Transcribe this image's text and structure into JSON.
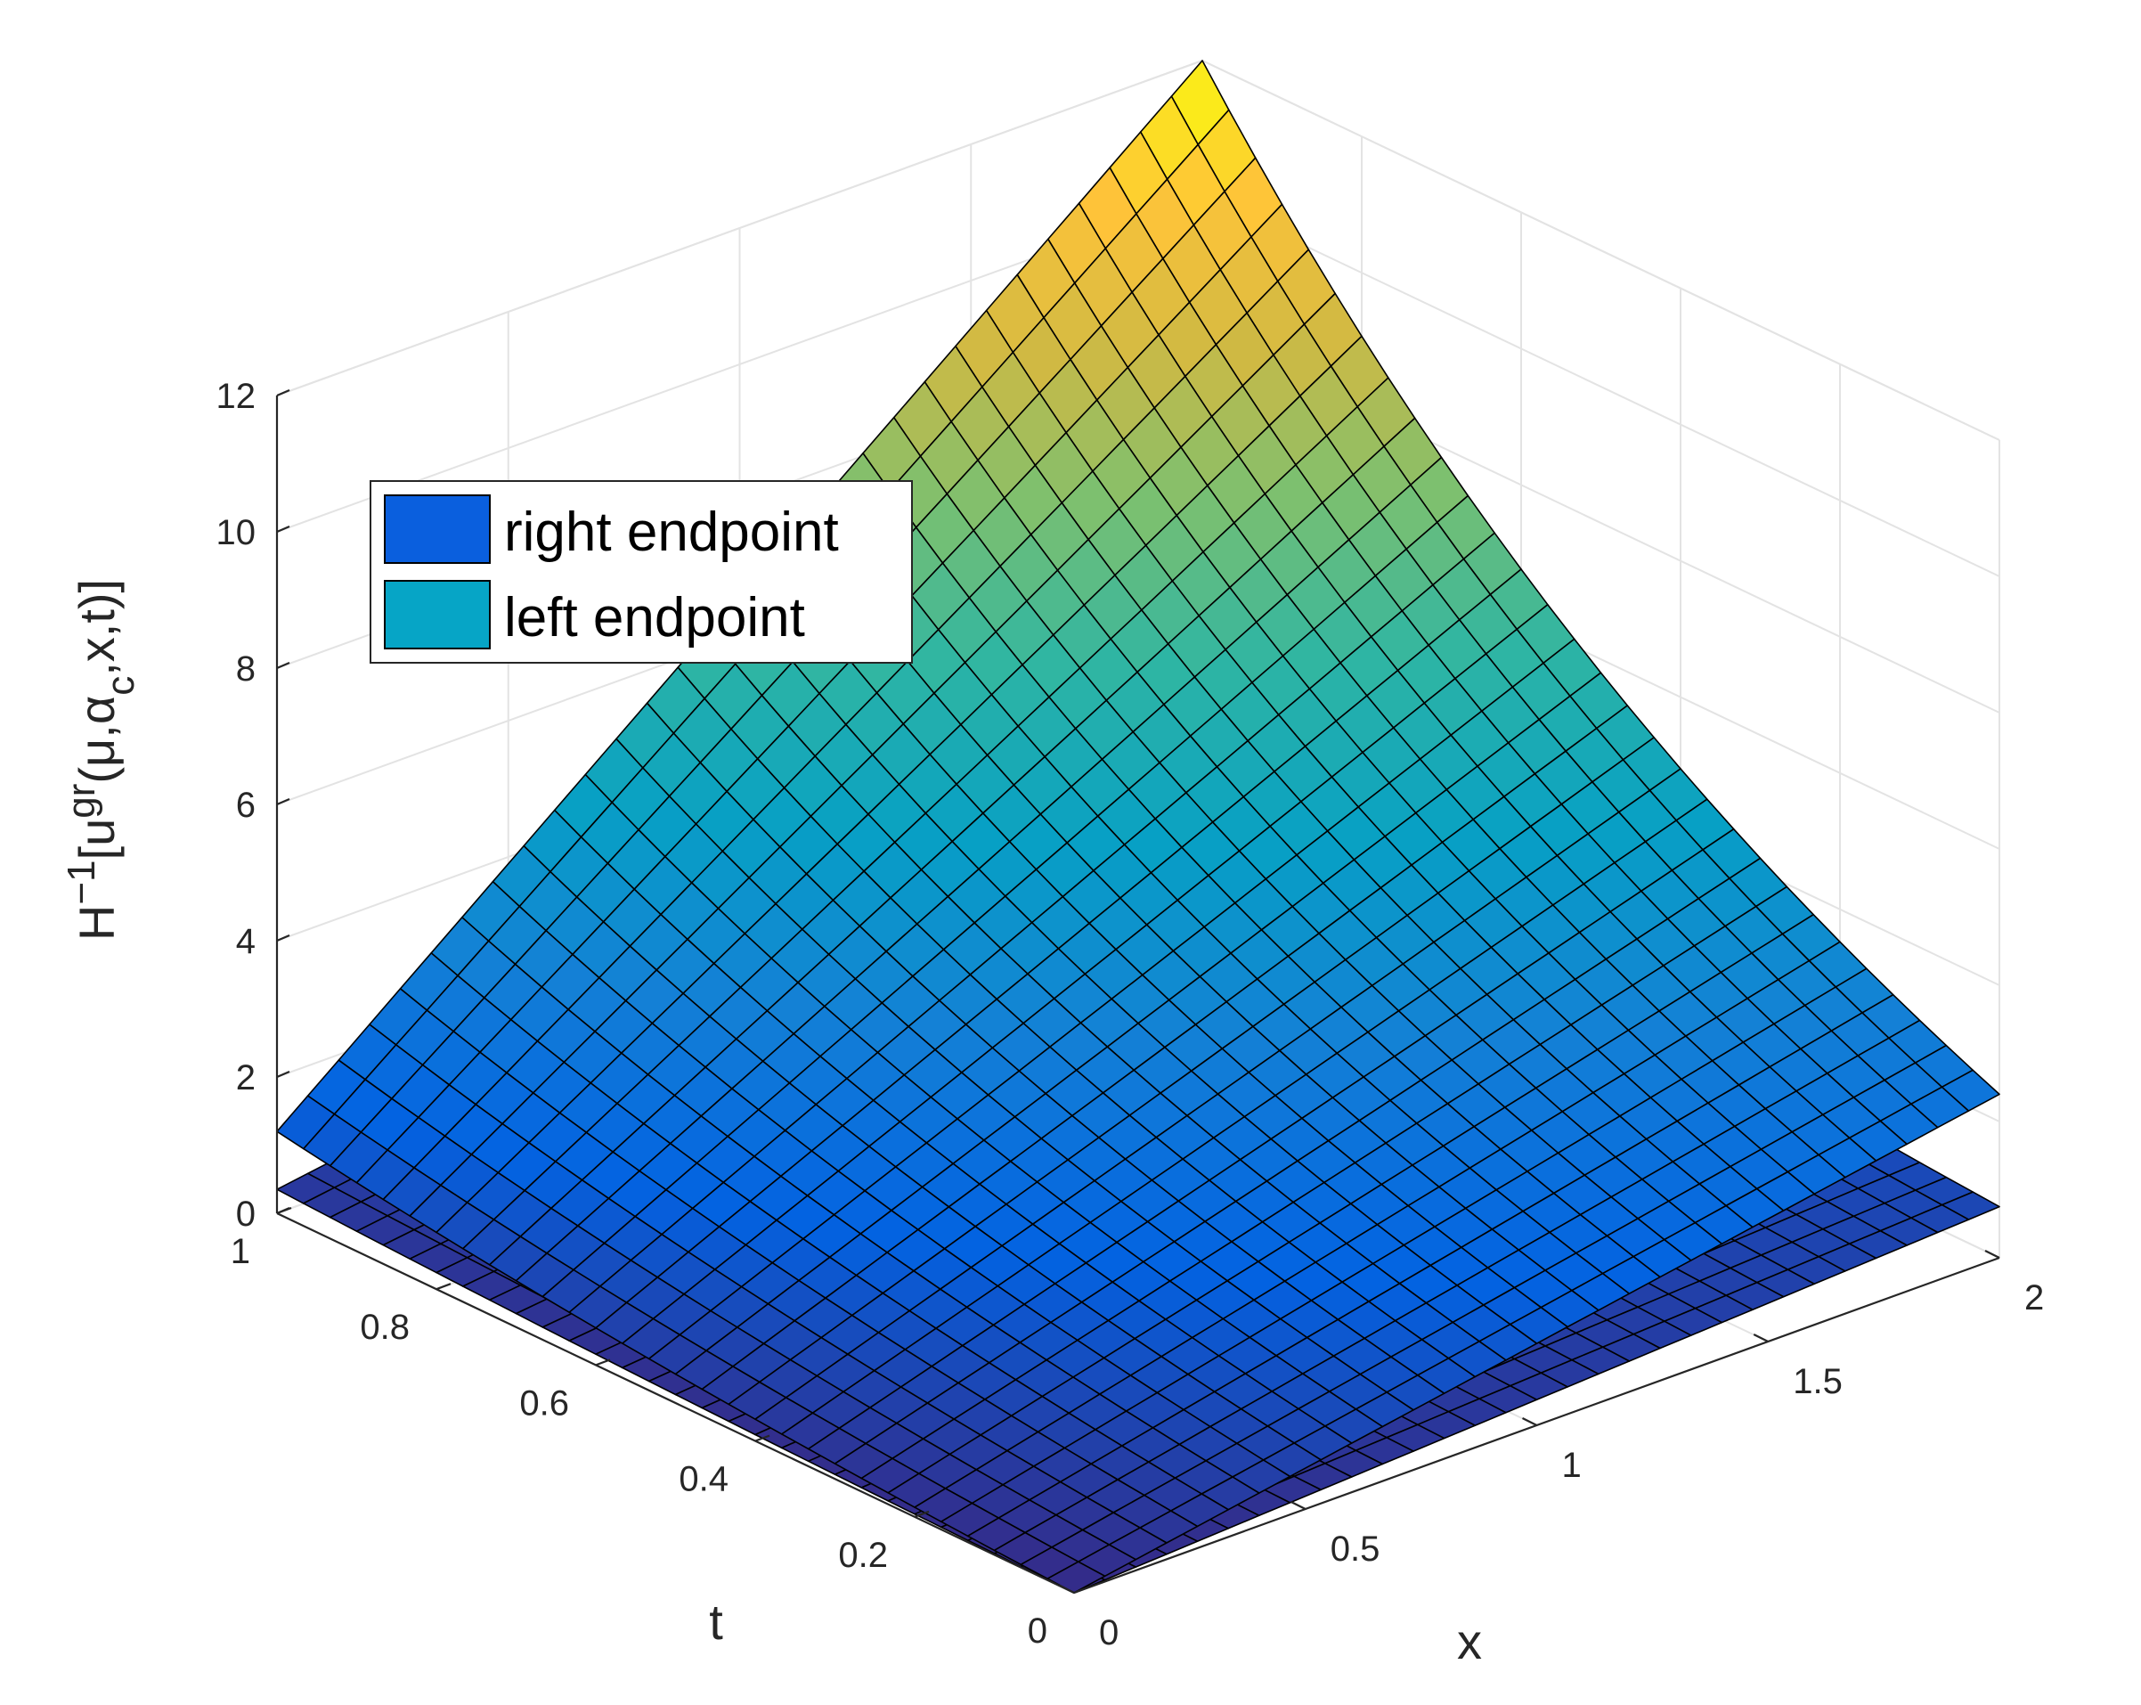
{
  "chart_data": {
    "type": "surface3d",
    "title": "",
    "xlabel": "x",
    "ylabel": "t",
    "zlabel": "H^{-1}[u^{gr}(μ,α_c,x,t)]",
    "xlim": [
      0,
      2
    ],
    "ylim": [
      0,
      1
    ],
    "zlim": [
      0,
      12
    ],
    "xticks": [
      "0",
      "0.5",
      "1",
      "1.5",
      "2"
    ],
    "yticks": [
      "0",
      "0.2",
      "0.4",
      "0.6",
      "0.8",
      "1"
    ],
    "zticks": [
      "0",
      "2",
      "4",
      "6",
      "8",
      "10",
      "12"
    ],
    "grid": true,
    "colormap": "parula",
    "legend_position": "top-left",
    "mesh": {
      "x_divisions": 30,
      "t_divisions": 30
    },
    "series": [
      {
        "name": "right endpoint",
        "legend_color": "#0a5fde",
        "corner_values": {
          "x0_t0": 0.0,
          "x0_t1": 1.2,
          "x2_t0": 2.4,
          "x2_t1": 12.0
        }
      },
      {
        "name": "left endpoint",
        "legend_color": "#06a5c6",
        "corner_values": {
          "x0_t0": 0.0,
          "x0_t1": 0.35,
          "x2_t0": 0.75,
          "x2_t1": 2.45
        }
      }
    ]
  },
  "colors": {
    "axes_line": "#262626",
    "grid_line": "#e3e3e3",
    "mesh_edge": "#000000"
  }
}
